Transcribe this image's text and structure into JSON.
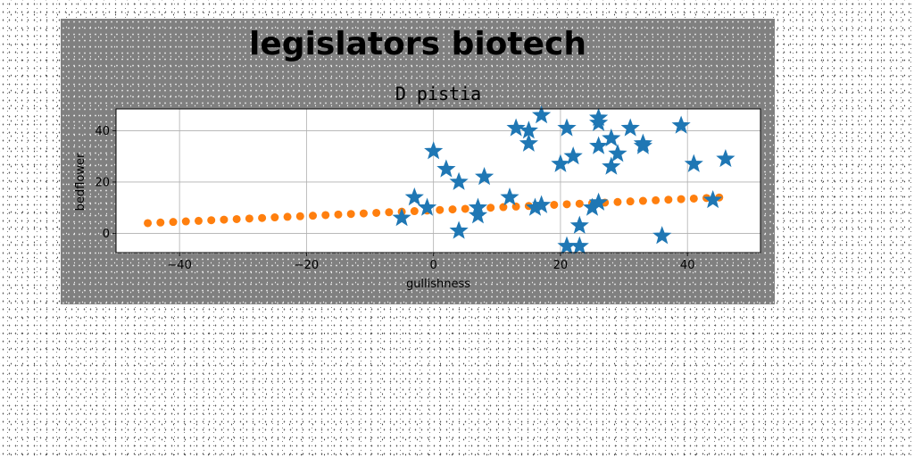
{
  "chart_data": {
    "type": "scatter",
    "suptitle": "legislators biotech",
    "title": "D pistia",
    "xlabel": "gullishness",
    "ylabel": "bedflower",
    "xlim": [
      -50,
      51.5
    ],
    "ylim": [
      -7.5,
      48.5
    ],
    "xticks": [
      -40,
      -20,
      0,
      20,
      40
    ],
    "yticks": [
      0,
      20,
      40
    ],
    "grid": true,
    "series": [
      {
        "marker": "star",
        "color": "#1f77b4",
        "points": [
          [
            -5,
            6
          ],
          [
            -3,
            14
          ],
          [
            -1,
            10
          ],
          [
            0,
            32
          ],
          [
            2,
            25
          ],
          [
            4,
            20
          ],
          [
            4,
            1
          ],
          [
            7,
            7
          ],
          [
            7,
            10
          ],
          [
            8,
            22
          ],
          [
            12,
            14
          ],
          [
            13,
            41
          ],
          [
            15,
            35
          ],
          [
            15,
            40
          ],
          [
            16,
            10
          ],
          [
            17,
            11
          ],
          [
            17,
            46
          ],
          [
            20,
            27
          ],
          [
            21,
            41
          ],
          [
            21,
            -5
          ],
          [
            22,
            30
          ],
          [
            23,
            3
          ],
          [
            23,
            -5
          ],
          [
            25,
            10
          ],
          [
            26,
            12
          ],
          [
            26,
            34
          ],
          [
            26,
            43
          ],
          [
            26,
            45
          ],
          [
            28,
            26
          ],
          [
            28,
            37
          ],
          [
            29,
            31
          ],
          [
            31,
            41
          ],
          [
            33,
            34
          ],
          [
            33,
            35
          ],
          [
            36,
            -1
          ],
          [
            39,
            42
          ],
          [
            41,
            27
          ],
          [
            44,
            13
          ],
          [
            46,
            29
          ]
        ]
      },
      {
        "marker": "circle",
        "color": "#ff7f0e",
        "x_start": -45,
        "x_end": 45,
        "x_step": 2,
        "y_start": 4,
        "y_end": 14
      }
    ]
  }
}
